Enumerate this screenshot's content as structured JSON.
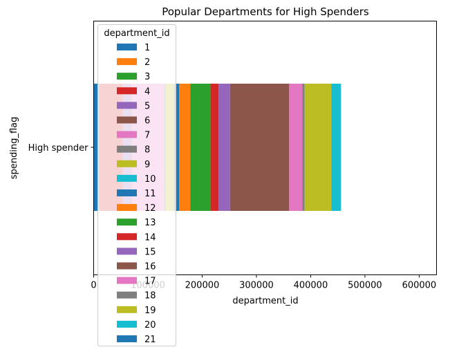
{
  "chart_data": {
    "type": "bar",
    "orientation": "horizontal",
    "stacked": true,
    "title": "Popular Departments for High Spenders",
    "xlabel": "department_id",
    "ylabel": "spending_flag",
    "categories": [
      "High spender"
    ],
    "xlim": [
      0,
      632000
    ],
    "x_ticks": [
      0,
      100000,
      200000,
      300000,
      400000,
      500000,
      600000
    ],
    "grid": false,
    "legend": {
      "title": "department_id",
      "placement": "upper-left"
    },
    "series": [
      {
        "name": "1",
        "color": "#1f77b4",
        "values": [
          9000
        ]
      },
      {
        "name": "2",
        "color": "#ff7f0e",
        "values": [
          300
        ]
      },
      {
        "name": "3",
        "color": "#2ca02c",
        "values": [
          1500
        ]
      },
      {
        "name": "4",
        "color": "#d62728",
        "values": [
          43000
        ]
      },
      {
        "name": "5",
        "color": "#9467bd",
        "values": [
          14500
        ]
      },
      {
        "name": "6",
        "color": "#8c564b",
        "values": [
          1700
        ]
      },
      {
        "name": "7",
        "color": "#e377c2",
        "values": [
          60000
        ]
      },
      {
        "name": "8",
        "color": "#7f7f7f",
        "values": [
          3000
        ]
      },
      {
        "name": "9",
        "color": "#bcbd22",
        "values": [
          15000
        ]
      },
      {
        "name": "10",
        "color": "#17becf",
        "values": [
          400
        ]
      },
      {
        "name": "11",
        "color": "#1f77b4",
        "values": [
          9000
        ]
      },
      {
        "name": "12",
        "color": "#ff7f0e",
        "values": [
          21000
        ]
      },
      {
        "name": "13",
        "color": "#2ca02c",
        "values": [
          37000
        ]
      },
      {
        "name": "14",
        "color": "#d62728",
        "values": [
          15000
        ]
      },
      {
        "name": "15",
        "color": "#9467bd",
        "values": [
          21000
        ]
      },
      {
        "name": "16",
        "color": "#8c564b",
        "values": [
          109000
        ]
      },
      {
        "name": "17",
        "color": "#e377c2",
        "values": [
          24000
        ]
      },
      {
        "name": "18",
        "color": "#7f7f7f",
        "values": [
          4500
        ]
      },
      {
        "name": "19",
        "color": "#bcbd22",
        "values": [
          49000
        ]
      },
      {
        "name": "20",
        "color": "#17becf",
        "values": [
          17500
        ]
      },
      {
        "name": "21",
        "color": "#1f77b4",
        "values": [
          500
        ]
      }
    ]
  }
}
